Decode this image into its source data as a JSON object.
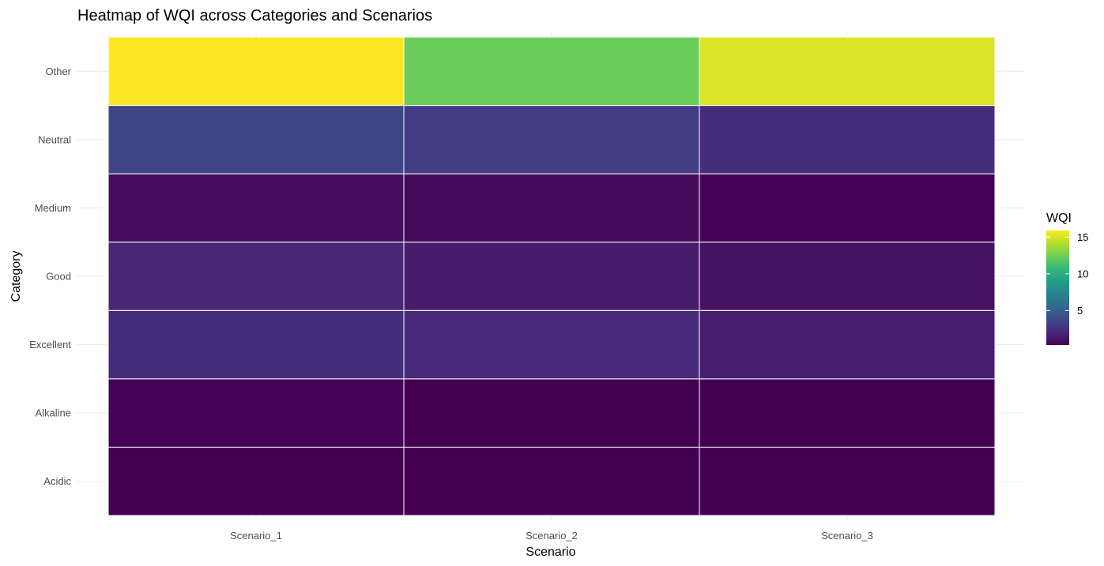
{
  "chart_data": {
    "type": "heatmap",
    "title": "Heatmap of WQI across Categories and Scenarios",
    "xlabel": "Scenario",
    "ylabel": "Category",
    "x_categories": [
      "Scenario_1",
      "Scenario_2",
      "Scenario_3"
    ],
    "y_categories": [
      "Acidic",
      "Alkaline",
      "Excellent",
      "Good",
      "Medium",
      "Neutral",
      "Other"
    ],
    "values": [
      [
        0.3,
        0.3,
        0.3
      ],
      [
        0.4,
        0.3,
        0.3
      ],
      [
        2.3,
        2.2,
        1.6
      ],
      [
        1.9,
        1.5,
        1.1
      ],
      [
        0.8,
        0.7,
        0.4
      ],
      [
        3.6,
        3.1,
        2.3
      ],
      [
        15.9,
        12.3,
        15.1
      ]
    ],
    "legend": {
      "title": "WQI",
      "ticks": [
        5,
        10,
        15
      ],
      "min": 0.3,
      "max": 15.9,
      "placement": "right"
    },
    "colormap": [
      "#440154",
      "#482878",
      "#3e4989",
      "#31688e",
      "#26828e",
      "#1f9e89",
      "#35b779",
      "#6ece58",
      "#b5de2b",
      "#fde725"
    ],
    "grid": true
  }
}
